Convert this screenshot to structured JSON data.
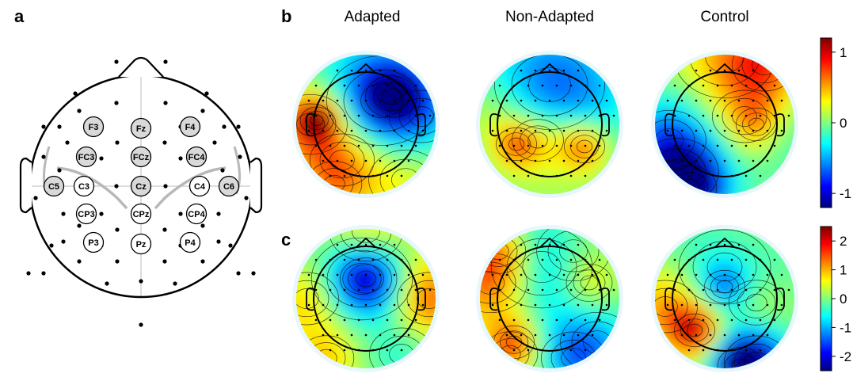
{
  "panel_labels": {
    "a": "a",
    "b": "b",
    "c": "c"
  },
  "columns": {
    "adapted": "Adapted",
    "non_adapted": "Non-Adapted",
    "control": "Control"
  },
  "electrodes": {
    "highlighted": [
      "F3",
      "Fz",
      "F4",
      "FC3",
      "FCz",
      "FC4",
      "C5",
      "Cz",
      "C6"
    ],
    "plain": [
      "C3",
      "C4",
      "CP3",
      "CPz",
      "CP4",
      "P3",
      "Pz",
      "P4"
    ]
  },
  "colorbar_b": {
    "ticks": [
      "1",
      "0",
      "-1"
    ],
    "range": [
      -1.2,
      1.2
    ]
  },
  "colorbar_c": {
    "ticks": [
      "2",
      "1",
      "0",
      "-1",
      "-2"
    ],
    "range": [
      -2.5,
      2.5
    ]
  },
  "colormap": [
    "#00007f",
    "#0000ff",
    "#0080ff",
    "#00ffff",
    "#80ff80",
    "#ffff00",
    "#ff8000",
    "#ff0000",
    "#7f0000"
  ]
}
